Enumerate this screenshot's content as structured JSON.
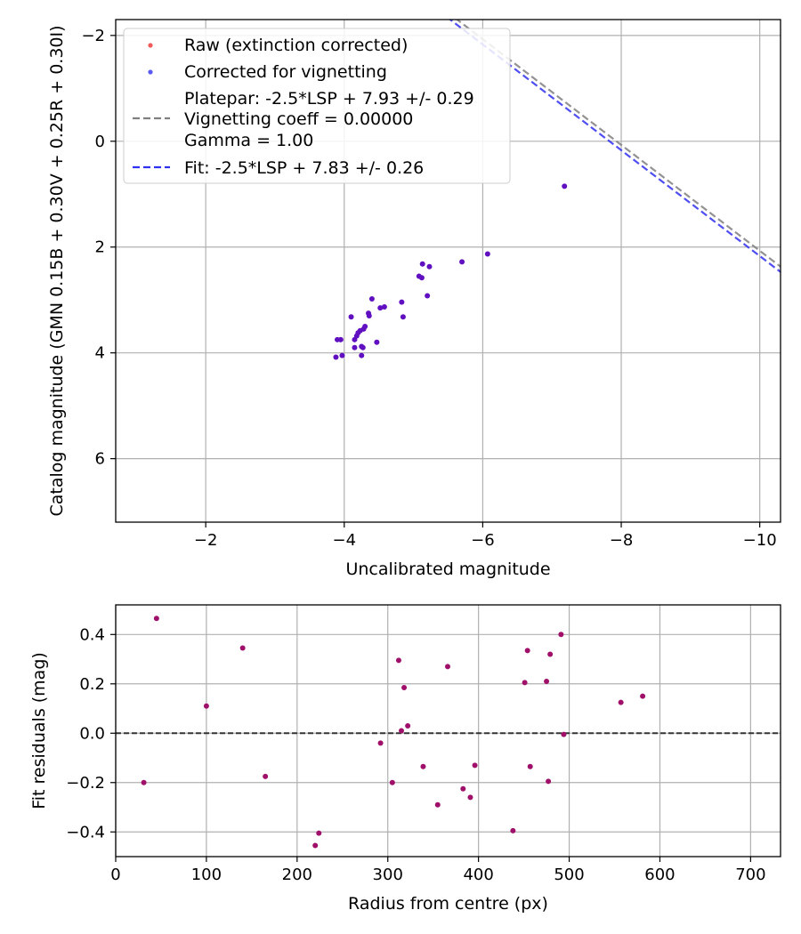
{
  "chart_data": [
    {
      "type": "scatter",
      "xlabel": "Uncalibrated magnitude",
      "ylabel": "Catalog magnitude (GMN 0.15B + 0.30V + 0.25R + 0.30I)",
      "xlim": [
        -0.7,
        -10.3
      ],
      "ylim": [
        7.2,
        -2.3
      ],
      "x_axis_inverted": true,
      "y_axis_inverted": true,
      "grid": true,
      "xticks": [
        -2,
        -4,
        -6,
        -8,
        -10
      ],
      "xtick_labels": [
        "−2",
        "−4",
        "−6",
        "−8",
        "−10"
      ],
      "yticks": [
        -2,
        0,
        2,
        4,
        6
      ],
      "ytick_labels": [
        "−2",
        "0",
        "2",
        "4",
        "6"
      ],
      "legend_position": "upper-left",
      "legend": [
        {
          "kind": "marker",
          "color": "#f05a5a",
          "label": "Raw (extinction corrected)"
        },
        {
          "kind": "marker",
          "color": "#5a5af5",
          "label": "Corrected for vignetting"
        },
        {
          "kind": "text",
          "label": "Platepar: -2.5*LSP + 7.93 +/- 0.29"
        },
        {
          "kind": "dashed",
          "color": "#808080",
          "label": "Vignetting coeff = 0.00000"
        },
        {
          "kind": "text",
          "label": "Gamma = 1.00"
        },
        {
          "kind": "dashed",
          "color": "#3030f0",
          "label": "Fit: -2.5*LSP + 7.83 +/- 0.26"
        }
      ],
      "lines": [
        {
          "name": "Platepar",
          "slope": 1,
          "intercept": 7.93,
          "color": "#808080",
          "style": "dashed"
        },
        {
          "name": "Fit",
          "slope": 1,
          "intercept": 7.83,
          "color": "#3030f0",
          "style": "dashed"
        }
      ],
      "point_color": "#6010c0",
      "points": [
        {
          "x": -3.9,
          "y": 3.75
        },
        {
          "x": -3.95,
          "y": 3.75
        },
        {
          "x": -3.88,
          "y": 4.08
        },
        {
          "x": -3.97,
          "y": 4.05
        },
        {
          "x": -4.1,
          "y": 3.32
        },
        {
          "x": -4.15,
          "y": 3.75
        },
        {
          "x": -4.18,
          "y": 3.68
        },
        {
          "x": -4.2,
          "y": 3.62
        },
        {
          "x": -4.23,
          "y": 3.58
        },
        {
          "x": -4.28,
          "y": 3.55
        },
        {
          "x": -4.3,
          "y": 3.5
        },
        {
          "x": -4.15,
          "y": 3.9
        },
        {
          "x": -4.25,
          "y": 3.88
        },
        {
          "x": -4.27,
          "y": 3.9
        },
        {
          "x": -4.25,
          "y": 4.05
        },
        {
          "x": -4.35,
          "y": 3.25
        },
        {
          "x": -4.36,
          "y": 3.3
        },
        {
          "x": -4.4,
          "y": 2.98
        },
        {
          "x": -4.47,
          "y": 3.8
        },
        {
          "x": -4.52,
          "y": 3.15
        },
        {
          "x": -4.58,
          "y": 3.13
        },
        {
          "x": -4.83,
          "y": 3.04
        },
        {
          "x": -4.85,
          "y": 3.32
        },
        {
          "x": -5.08,
          "y": 2.55
        },
        {
          "x": -5.12,
          "y": 2.58
        },
        {
          "x": -5.13,
          "y": 2.32
        },
        {
          "x": -5.2,
          "y": 2.92
        },
        {
          "x": -5.23,
          "y": 2.37
        },
        {
          "x": -5.7,
          "y": 2.28
        },
        {
          "x": -6.07,
          "y": 2.13
        },
        {
          "x": -7.18,
          "y": 0.85
        }
      ]
    },
    {
      "type": "scatter",
      "xlabel": "Radius from centre (px)",
      "ylabel": "Fit residuals (mag)",
      "xlim": [
        0,
        733
      ],
      "ylim": [
        -0.5,
        0.52
      ],
      "grid": true,
      "xticks": [
        0,
        100,
        200,
        300,
        400,
        500,
        600,
        700
      ],
      "xtick_labels": [
        "0",
        "100",
        "200",
        "300",
        "400",
        "500",
        "600",
        "700"
      ],
      "yticks": [
        -0.4,
        -0.2,
        0.0,
        0.2,
        0.4
      ],
      "ytick_labels": [
        "−0.4",
        "−0.2",
        "0.0",
        "0.2",
        "0.4"
      ],
      "zero_line": {
        "y": 0,
        "color": "#333333",
        "style": "dashed"
      },
      "point_color": "#a0106a",
      "points": [
        {
          "x": 31,
          "y": -0.2
        },
        {
          "x": 45,
          "y": 0.465
        },
        {
          "x": 100,
          "y": 0.11
        },
        {
          "x": 140,
          "y": 0.345
        },
        {
          "x": 165,
          "y": -0.175
        },
        {
          "x": 220,
          "y": -0.455
        },
        {
          "x": 224,
          "y": -0.405
        },
        {
          "x": 292,
          "y": -0.04
        },
        {
          "x": 305,
          "y": -0.2
        },
        {
          "x": 312,
          "y": 0.295
        },
        {
          "x": 315,
          "y": 0.01
        },
        {
          "x": 318,
          "y": 0.185
        },
        {
          "x": 322,
          "y": 0.03
        },
        {
          "x": 339,
          "y": -0.135
        },
        {
          "x": 355,
          "y": -0.29
        },
        {
          "x": 366,
          "y": 0.27
        },
        {
          "x": 383,
          "y": -0.225
        },
        {
          "x": 391,
          "y": -0.26
        },
        {
          "x": 396,
          "y": -0.13
        },
        {
          "x": 438,
          "y": -0.395
        },
        {
          "x": 451,
          "y": 0.205
        },
        {
          "x": 454,
          "y": 0.335
        },
        {
          "x": 457,
          "y": -0.135
        },
        {
          "x": 475,
          "y": 0.21
        },
        {
          "x": 477,
          "y": -0.195
        },
        {
          "x": 479,
          "y": 0.32
        },
        {
          "x": 491,
          "y": 0.4
        },
        {
          "x": 494,
          "y": -0.005
        },
        {
          "x": 557,
          "y": 0.125
        },
        {
          "x": 581,
          "y": 0.15
        }
      ]
    }
  ]
}
